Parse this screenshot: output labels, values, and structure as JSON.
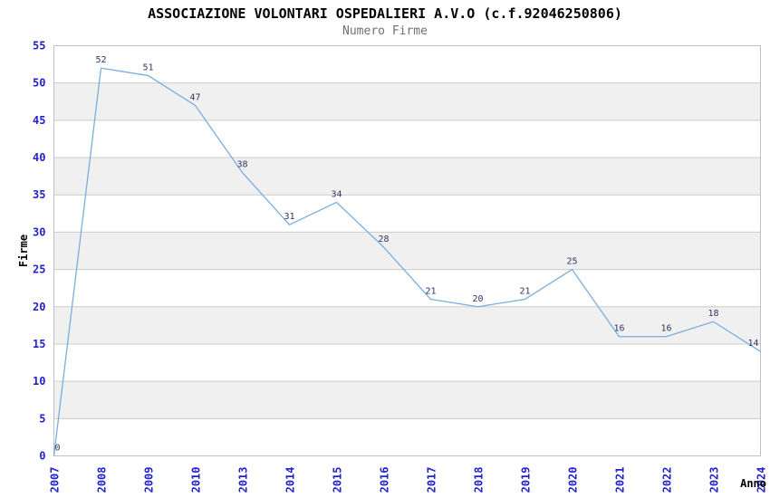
{
  "header": {
    "title": "ASSOCIAZIONE VOLONTARI OSPEDALIERI A.V.O (c.f.92046250806)",
    "subtitle": "Numero Firme"
  },
  "chart_data": {
    "type": "line",
    "title": "ASSOCIAZIONE VOLONTARI OSPEDALIERI A.V.O (c.f.92046250806)",
    "subtitle": "Numero Firme",
    "xlabel": "Anno",
    "ylabel": "Firme",
    "categories": [
      "2007",
      "2008",
      "2009",
      "2010",
      "2013",
      "2014",
      "2015",
      "2016",
      "2017",
      "2018",
      "2019",
      "2020",
      "2021",
      "2022",
      "2023",
      "2024"
    ],
    "values": [
      0,
      52,
      51,
      47,
      38,
      31,
      34,
      28,
      21,
      20,
      21,
      25,
      16,
      16,
      18,
      14
    ],
    "ylim": [
      0,
      55
    ],
    "ytick_step": 5,
    "grid": true,
    "legend": "none",
    "colors": {
      "line": "#7aaede",
      "tick_label": "#2222cc",
      "point_label": "#333366",
      "band": "#f0f0f0",
      "gridline": "#cccccc",
      "plot_border": "#c0c0c0",
      "axis_title": "#000000",
      "title": "#000000",
      "subtitle": "#707070",
      "background": "#ffffff"
    }
  }
}
